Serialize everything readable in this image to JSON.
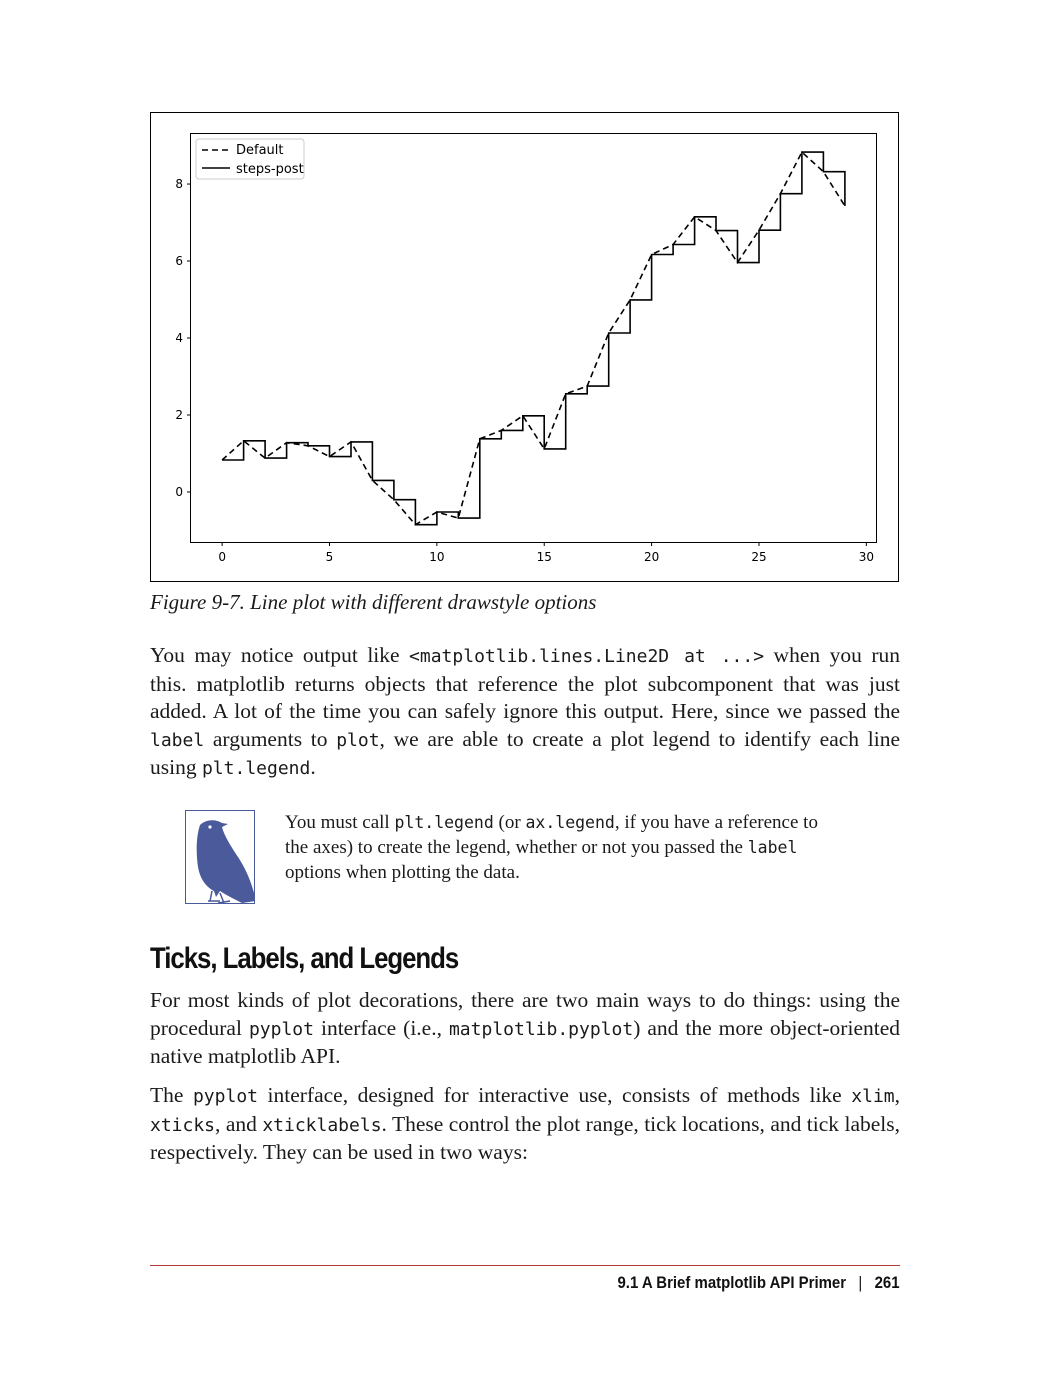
{
  "figure": {
    "caption": "Figure 9-7. Line plot with different drawstyle options"
  },
  "chart_data": {
    "type": "line",
    "title": "",
    "xlabel": "",
    "ylabel": "",
    "xlim": [
      -1.45,
      30.45
    ],
    "ylim": [
      -1.3,
      9.3
    ],
    "xticks": [
      0,
      5,
      10,
      15,
      20,
      25,
      30
    ],
    "yticks": [
      0,
      2,
      4,
      6,
      8
    ],
    "legend_position": "top-left",
    "grid": false,
    "x": [
      0,
      1,
      2,
      3,
      4,
      5,
      6,
      7,
      8,
      9,
      10,
      11,
      12,
      13,
      14,
      15,
      16,
      17,
      18,
      19,
      20,
      21,
      22,
      23,
      24,
      25,
      26,
      27,
      28,
      29
    ],
    "series": [
      {
        "name": "Default",
        "style": "dashed",
        "color": "#000000",
        "values": [
          0.83,
          1.33,
          0.88,
          1.28,
          1.2,
          0.92,
          1.3,
          0.3,
          -0.2,
          -0.85,
          -0.52,
          -0.68,
          1.38,
          1.6,
          1.98,
          1.12,
          2.55,
          2.75,
          4.13,
          4.99,
          6.17,
          6.43,
          7.15,
          6.79,
          5.96,
          6.8,
          7.75,
          8.83,
          8.32,
          7.43
        ]
      },
      {
        "name": "steps-post",
        "style": "steps-post",
        "color": "#000000",
        "values": [
          0.83,
          1.33,
          0.88,
          1.28,
          1.2,
          0.92,
          1.3,
          0.3,
          -0.2,
          -0.85,
          -0.52,
          -0.68,
          1.38,
          1.6,
          1.98,
          1.12,
          2.55,
          2.75,
          4.13,
          4.99,
          6.17,
          6.43,
          7.15,
          6.79,
          5.96,
          6.8,
          7.75,
          8.83,
          8.32,
          7.43
        ]
      }
    ]
  },
  "paragraph1": {
    "t1": "You may notice output like ",
    "c1": "<matplotlib.lines.Line2D at ...>",
    "t2": " when you run this. matplotlib returns objects that reference the plot subcomponent that was just added. A lot of the time you can safely ignore this output. Here, since we passed the ",
    "c2": "label",
    "t3": " arguments to ",
    "c3": "plot",
    "t4": ", we are able to create a plot legend to identify each line using ",
    "c4": "plt.legend",
    "t5": "."
  },
  "note": {
    "icon": "crow-icon",
    "t1": "You must call ",
    "c1": "plt.legend",
    "t2": " (or ",
    "c2": "ax.legend",
    "t3": ", if you have a reference to the axes) to create the legend, whether or not you passed the ",
    "c3": "label",
    "t4": " options when plotting the data."
  },
  "section": {
    "heading": "Ticks, Labels, and Legends"
  },
  "paragraph2": {
    "t1": "For most kinds of plot decorations, there are two main ways to do things: using the procedural ",
    "c1": "pyplot",
    "t2": " interface (i.e., ",
    "c2": "matplotlib.pyplot",
    "t3": ") and the more object-oriented native matplotlib API."
  },
  "paragraph3": {
    "t1": "The ",
    "c1": "pyplot",
    "t2": " interface, designed for interactive use, consists of methods like ",
    "c2": "xlim",
    "t3": ", ",
    "c3": "xticks",
    "t4": ", and ",
    "c4": "xticklabels",
    "t5": ". These control the plot range, tick locations, and tick labels, respectively. They can be used in two ways:"
  },
  "footer": {
    "section": "9.1 A Brief matplotlib API Primer",
    "separator": "|",
    "page": "261"
  },
  "colors": {
    "rule": "#b03a3a",
    "icon_blue": "#4b5a9a"
  }
}
